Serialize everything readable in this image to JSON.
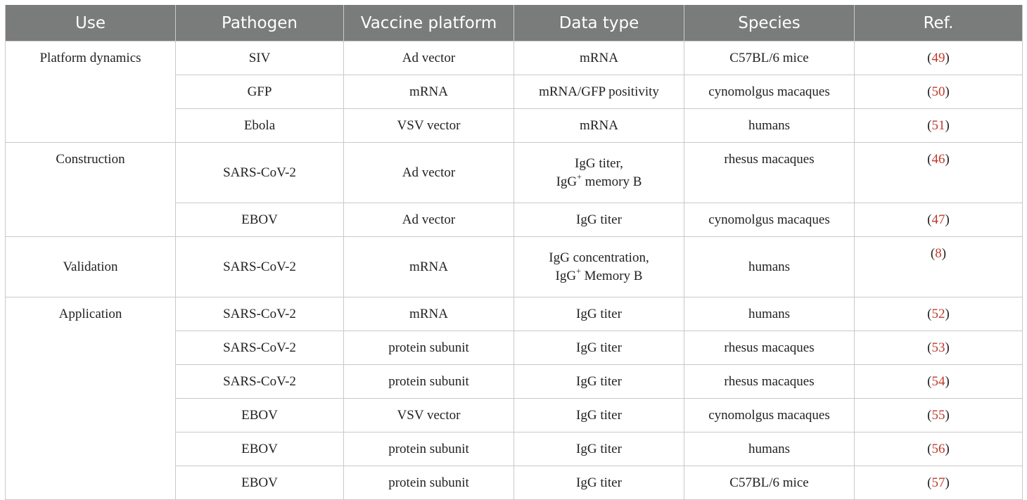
{
  "headers": [
    "Use",
    "Pathogen",
    "Vaccine platform",
    "Data type",
    "Species",
    "Ref."
  ],
  "groups": {
    "platform_dynamics": "Platform dynamics",
    "construction": "Construction",
    "validation": "Validation",
    "application": "Application"
  },
  "rows": [
    {
      "pathogen": "SIV",
      "platform": "Ad vector",
      "data_type": "mRNA",
      "species": "C57BL/6 mice",
      "ref": "49"
    },
    {
      "pathogen": "GFP",
      "platform": "mRNA",
      "data_type": "mRNA/GFP positivity",
      "species": "cynomolgus macaques",
      "ref": "50"
    },
    {
      "pathogen": "Ebola",
      "platform": "VSV vector",
      "data_type": "mRNA",
      "species": "humans",
      "ref": "51"
    },
    {
      "pathogen": "SARS-CoV-2",
      "platform": "Ad vector",
      "data_type_line1": "IgG titer,",
      "data_type_line2_pre": "IgG",
      "data_type_line2_sup": "+",
      "data_type_line2_post": " memory B",
      "species": "rhesus macaques",
      "ref": "46"
    },
    {
      "pathogen": "EBOV",
      "platform": "Ad vector",
      "data_type": "IgG titer",
      "species": "cynomolgus macaques",
      "ref": "47"
    },
    {
      "pathogen": "SARS-CoV-2",
      "platform": "mRNA",
      "data_type_line1": "IgG concentration,",
      "data_type_line2_pre": "IgG",
      "data_type_line2_sup": "+",
      "data_type_line2_post": " Memory B",
      "species": "humans",
      "ref": "8"
    },
    {
      "pathogen": "SARS-CoV-2",
      "platform": "mRNA",
      "data_type": "IgG titer",
      "species": "humans",
      "ref": "52"
    },
    {
      "pathogen": "SARS-CoV-2",
      "platform": "protein subunit",
      "data_type": "IgG titer",
      "species": "rhesus macaques",
      "ref": "53"
    },
    {
      "pathogen": "SARS-CoV-2",
      "platform": "protein subunit",
      "data_type": "IgG titer",
      "species": "rhesus macaques",
      "ref": "54"
    },
    {
      "pathogen": "EBOV",
      "platform": "VSV vector",
      "data_type": "IgG titer",
      "species": "cynomolgus macaques",
      "ref": "55"
    },
    {
      "pathogen": "EBOV",
      "platform": "protein subunit",
      "data_type": "IgG titer",
      "species": "humans",
      "ref": "56"
    },
    {
      "pathogen": "EBOV",
      "platform": "protein subunit",
      "data_type": "IgG titer",
      "species": "C57BL/6 mice",
      "ref": "57"
    }
  ],
  "ref_open": "(",
  "ref_close": ")",
  "colors": {
    "header_bg": "#7a7b7b",
    "header_text": "#ffffff",
    "ref_link": "#c0392b",
    "grid": "#c9c9c9"
  }
}
